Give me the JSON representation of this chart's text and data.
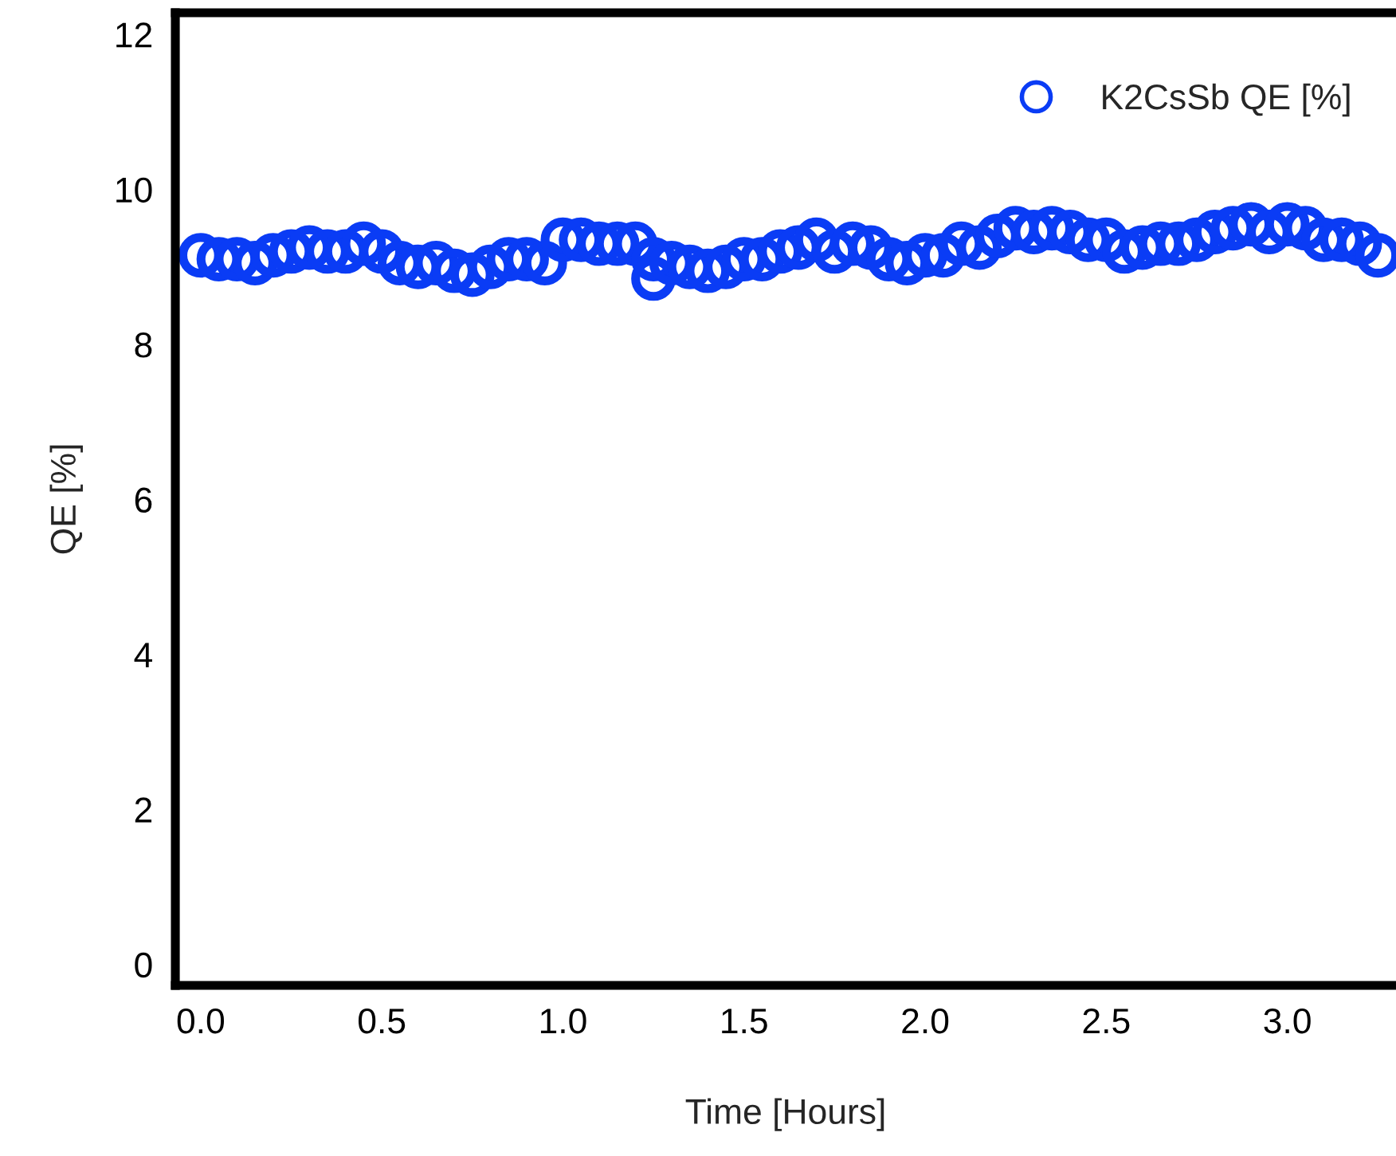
{
  "chart_data": {
    "type": "scatter",
    "xlabel": "Time [Hours]",
    "ylabel": "QE [%]",
    "xlim": [
      -0.07,
      3.3
    ],
    "ylim": [
      -0.27,
      12.28
    ],
    "xticks": [
      {
        "value": 0,
        "label": "0.0"
      },
      0.5,
      {
        "value": 1,
        "label": "1.0"
      },
      1.5,
      {
        "value": 2,
        "label": "2.0"
      },
      2.5,
      {
        "value": 3,
        "label": "3.0"
      }
    ],
    "yticks": [
      0,
      2,
      4,
      6,
      8,
      10,
      12
    ],
    "grid": false,
    "legend": "top right",
    "marker": "circle",
    "series": [
      {
        "name": "K2CsSb QE [%]",
        "color": "#0a3cf5",
        "x": [
          0.0,
          0.05,
          0.1,
          0.15,
          0.2,
          0.25,
          0.3,
          0.35,
          0.4,
          0.45,
          0.5,
          0.55,
          0.6,
          0.65,
          0.7,
          0.75,
          0.8,
          0.85,
          0.9,
          0.95,
          1.0,
          1.05,
          1.1,
          1.15,
          1.2,
          1.25,
          1.25,
          1.3,
          1.35,
          1.4,
          1.45,
          1.5,
          1.55,
          1.6,
          1.65,
          1.7,
          1.75,
          1.8,
          1.85,
          1.9,
          1.95,
          2.0,
          2.05,
          2.1,
          2.15,
          2.2,
          2.25,
          2.3,
          2.35,
          2.4,
          2.45,
          2.5,
          2.55,
          2.6,
          2.65,
          2.7,
          2.75,
          2.8,
          2.85,
          2.9,
          2.95,
          3.0,
          3.05,
          3.1,
          3.15,
          3.2,
          3.25
        ],
        "values": [
          9.15,
          9.1,
          9.1,
          9.05,
          9.15,
          9.2,
          9.25,
          9.2,
          9.2,
          9.3,
          9.2,
          9.05,
          9.0,
          9.05,
          8.95,
          8.9,
          9.0,
          9.1,
          9.1,
          9.05,
          9.35,
          9.35,
          9.3,
          9.3,
          9.3,
          9.1,
          8.85,
          9.05,
          9.0,
          8.95,
          9.0,
          9.1,
          9.1,
          9.2,
          9.25,
          9.35,
          9.2,
          9.3,
          9.25,
          9.1,
          9.05,
          9.15,
          9.15,
          9.3,
          9.25,
          9.4,
          9.5,
          9.45,
          9.5,
          9.45,
          9.35,
          9.35,
          9.2,
          9.25,
          9.3,
          9.3,
          9.35,
          9.45,
          9.5,
          9.55,
          9.45,
          9.55,
          9.5,
          9.35,
          9.35,
          9.3,
          9.15
        ]
      }
    ]
  }
}
